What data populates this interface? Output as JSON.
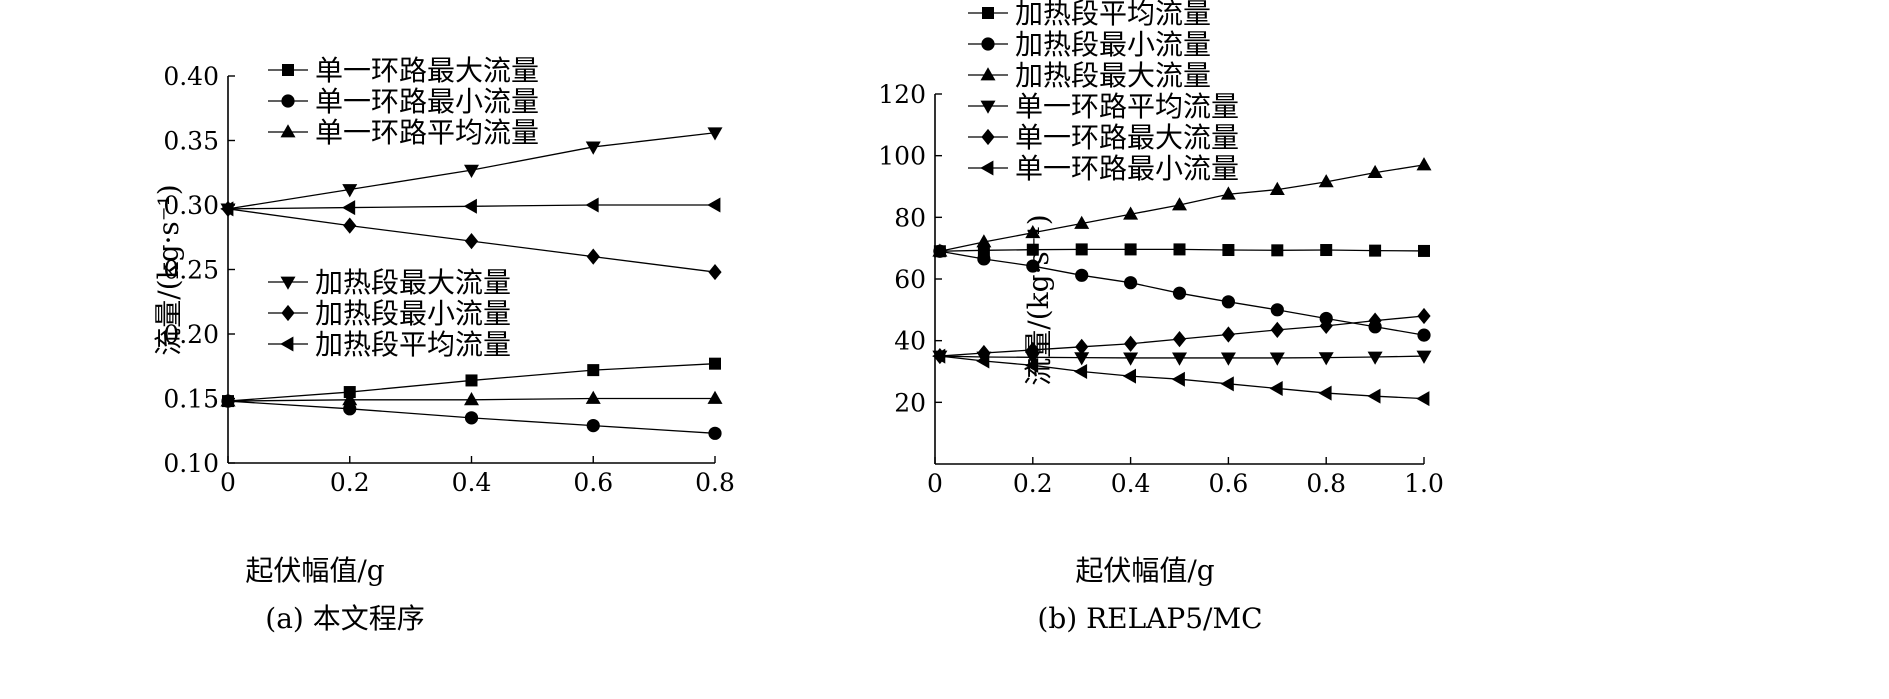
{
  "chart_data": [
    {
      "type": "line",
      "caption": "(a) 本文程序",
      "xlabel": "起伏幅值/g",
      "ylabel": "流量/(kg·s⁻¹)",
      "xlim": [
        0,
        0.8
      ],
      "ylim": [
        0.1,
        0.4
      ],
      "x_ticks": [
        "0",
        "0.2",
        "0.4",
        "0.6",
        "0.8"
      ],
      "y_ticks": [
        "0.10",
        "0.15",
        "0.20",
        "0.25",
        "0.30",
        "0.35",
        "0.40"
      ],
      "grid": false,
      "series": [
        {
          "name": "单一环路最大流量",
          "marker": "square",
          "x": [
            0,
            0.2,
            0.4,
            0.6,
            0.8
          ],
          "y": [
            0.148,
            0.155,
            0.164,
            0.172,
            0.177
          ]
        },
        {
          "name": "单一环路最小流量",
          "marker": "circle",
          "x": [
            0,
            0.2,
            0.4,
            0.6,
            0.8
          ],
          "y": [
            0.148,
            0.142,
            0.135,
            0.129,
            0.123
          ]
        },
        {
          "name": "单一环路平均流量",
          "marker": "triangle-up",
          "x": [
            0,
            0.2,
            0.4,
            0.6,
            0.8
          ],
          "y": [
            0.148,
            0.149,
            0.149,
            0.15,
            0.15
          ]
        },
        {
          "name": "加热段最大流量",
          "marker": "triangle-down",
          "x": [
            0,
            0.2,
            0.4,
            0.6,
            0.8
          ],
          "y": [
            0.297,
            0.312,
            0.327,
            0.345,
            0.356
          ]
        },
        {
          "name": "加热段最小流量",
          "marker": "diamond",
          "x": [
            0,
            0.2,
            0.4,
            0.6,
            0.8
          ],
          "y": [
            0.297,
            0.284,
            0.272,
            0.26,
            0.248
          ]
        },
        {
          "name": "加热段平均流量",
          "marker": "triangle-left",
          "x": [
            0,
            0.2,
            0.4,
            0.6,
            0.8
          ],
          "y": [
            0.297,
            0.298,
            0.299,
            0.3,
            0.3
          ]
        }
      ],
      "legend_groups": [
        {
          "placement": "top-left",
          "series": [
            0,
            1,
            2
          ]
        },
        {
          "placement": "middle-left",
          "series": [
            3,
            4,
            5
          ]
        }
      ]
    },
    {
      "type": "line",
      "caption": "(b) RELAP5/MC",
      "xlabel": "起伏幅值/g",
      "ylabel": "流量/(kg·s⁻¹)",
      "xlim": [
        0,
        1.0
      ],
      "ylim": [
        0,
        120
      ],
      "x_ticks": [
        "0",
        "0.2",
        "0.4",
        "0.6",
        "0.8",
        "1.0"
      ],
      "y_ticks": [
        "20",
        "40",
        "60",
        "80",
        "100",
        "120"
      ],
      "grid": false,
      "series": [
        {
          "name": "加热段平均流量",
          "marker": "square",
          "x": [
            0.01,
            0.1,
            0.2,
            0.3,
            0.4,
            0.5,
            0.6,
            0.7,
            0.8,
            0.9,
            1.0
          ],
          "y": [
            69,
            69.3,
            69.5,
            69.6,
            69.6,
            69.6,
            69.4,
            69.3,
            69.4,
            69.2,
            69.1
          ]
        },
        {
          "name": "加热段最小流量",
          "marker": "circle",
          "x": [
            0.01,
            0.1,
            0.2,
            0.3,
            0.4,
            0.5,
            0.6,
            0.7,
            0.8,
            0.9,
            1.0
          ],
          "y": [
            69,
            66.5,
            64.2,
            61.2,
            58.8,
            55.4,
            52.6,
            50.0,
            47.2,
            44.5,
            41.8
          ]
        },
        {
          "name": "加热段最大流量",
          "marker": "triangle-up",
          "x": [
            0.01,
            0.1,
            0.2,
            0.3,
            0.4,
            0.5,
            0.6,
            0.7,
            0.8,
            0.9,
            1.0
          ],
          "y": [
            69,
            72,
            75,
            78,
            81,
            84,
            87.5,
            89,
            91.5,
            94.5,
            97
          ]
        },
        {
          "name": "单一环路平均流量",
          "marker": "triangle-down",
          "x": [
            0.01,
            0.1,
            0.2,
            0.3,
            0.4,
            0.5,
            0.6,
            0.7,
            0.8,
            0.9,
            1.0
          ],
          "y": [
            35,
            34.7,
            34.6,
            34.5,
            34.4,
            34.4,
            34.4,
            34.4,
            34.5,
            34.7,
            35
          ]
        },
        {
          "name": "单一环路最大流量",
          "marker": "diamond",
          "x": [
            0.01,
            0.1,
            0.2,
            0.3,
            0.4,
            0.5,
            0.6,
            0.7,
            0.8,
            0.9,
            1.0
          ],
          "y": [
            35,
            36,
            37,
            38,
            39,
            40.5,
            42,
            43.5,
            44.8,
            46.5,
            48
          ]
        },
        {
          "name": "单一环路最小流量",
          "marker": "triangle-left",
          "x": [
            0.01,
            0.1,
            0.2,
            0.3,
            0.4,
            0.5,
            0.6,
            0.7,
            0.8,
            0.9,
            1.0
          ],
          "y": [
            35,
            33.4,
            32.0,
            30.0,
            28.5,
            27.5,
            26.0,
            24.5,
            23.0,
            22.0,
            21.2
          ]
        }
      ],
      "legend_groups": [
        {
          "placement": "top-left",
          "series": [
            0,
            1,
            2,
            3,
            4,
            5
          ]
        }
      ]
    }
  ]
}
